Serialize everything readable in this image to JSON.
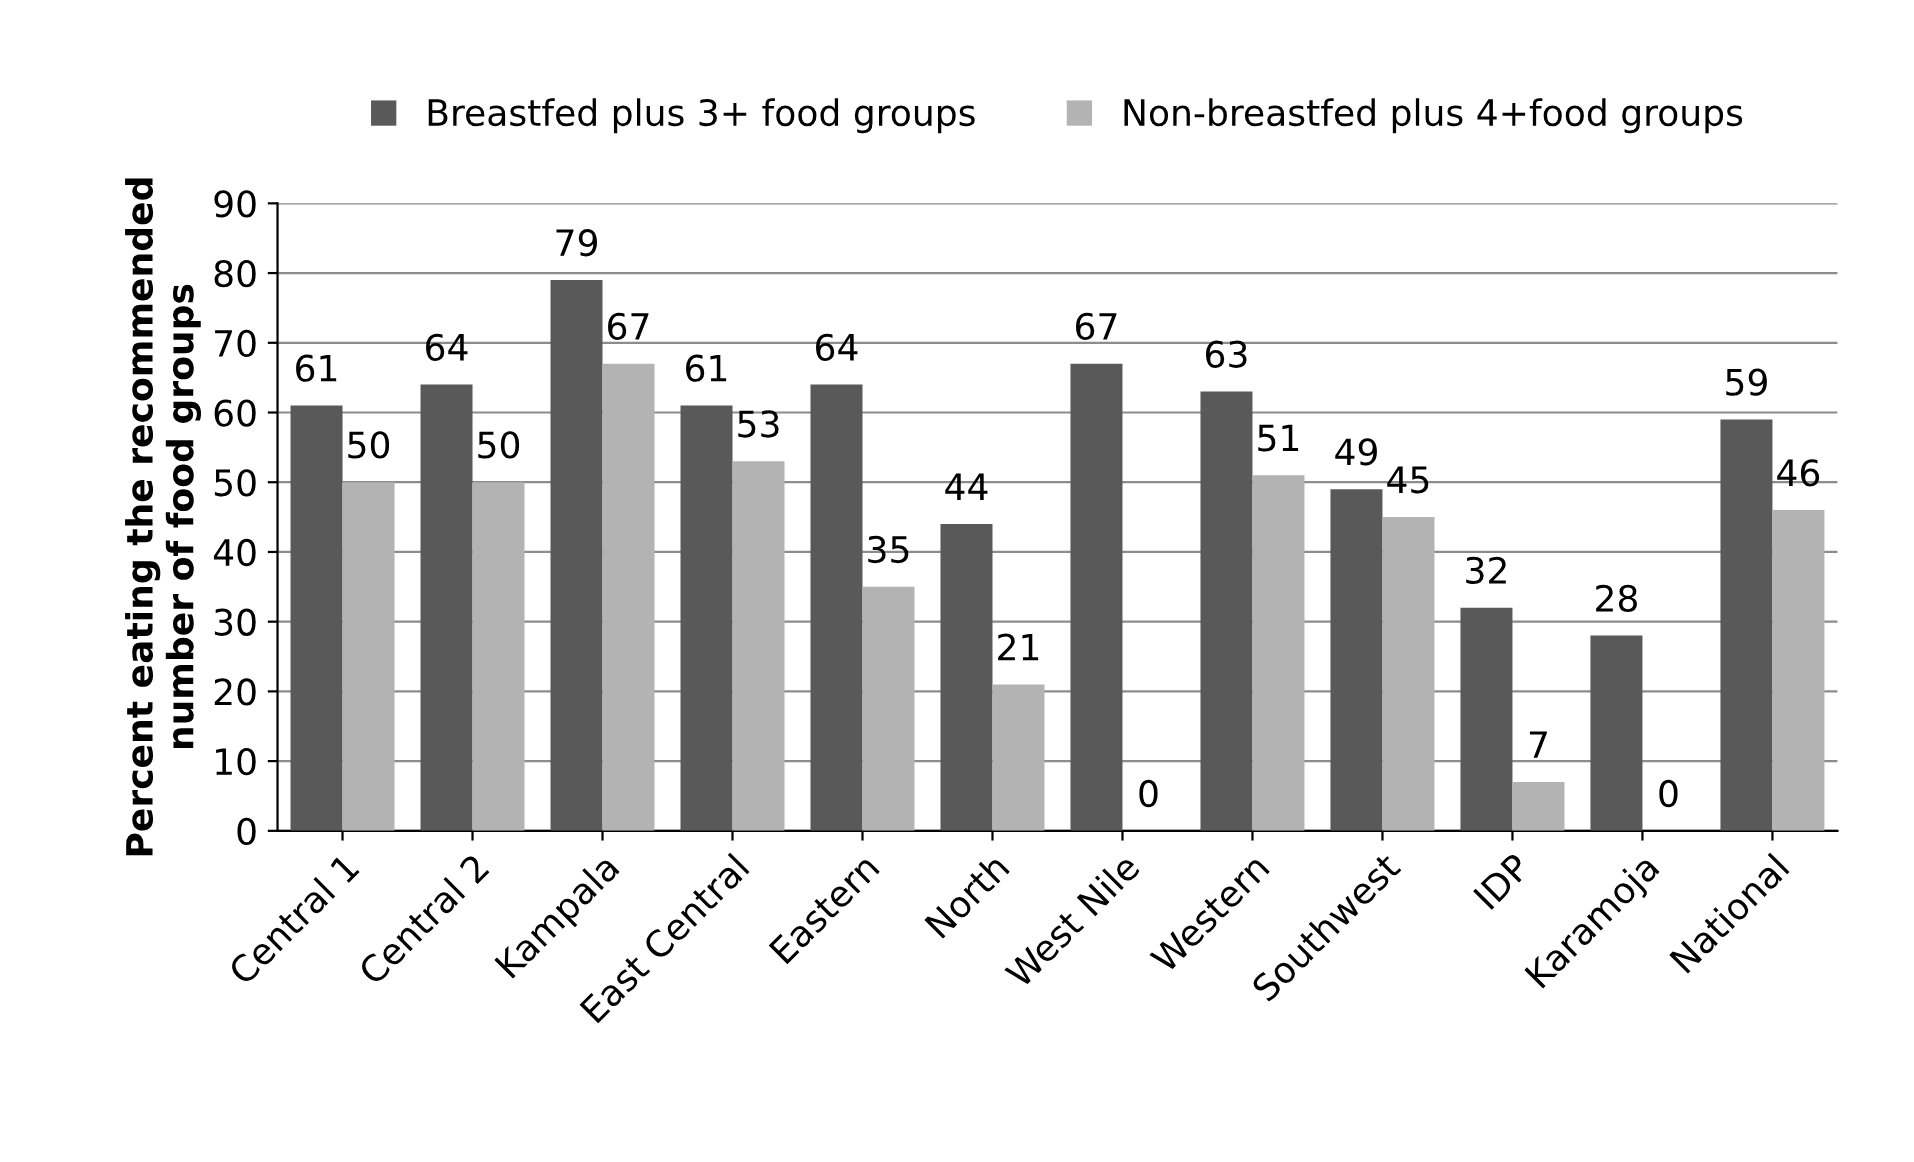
{
  "chart_data": {
    "type": "bar",
    "ylabel": "Percent eating the recommended\nnumber of food groups",
    "categories": [
      "Central 1",
      "Central 2",
      "Kampala",
      "East Central",
      "Eastern",
      "North",
      "West Nile",
      "Western",
      "Southwest",
      "IDP",
      "Karamoja",
      "National"
    ],
    "series": [
      {
        "name": "Breastfed plus 3+ food groups",
        "color": "#595959",
        "values": [
          61,
          64,
          79,
          61,
          64,
          44,
          67,
          63,
          49,
          32,
          28,
          59
        ]
      },
      {
        "name": "Non-breastfed plus 4+food groups",
        "color": "#b3b3b3",
        "values": [
          50,
          50,
          67,
          53,
          35,
          21,
          0,
          51,
          45,
          7,
          0,
          46
        ]
      }
    ],
    "ylim": [
      0,
      90
    ],
    "yticks": [
      0,
      10,
      20,
      30,
      40,
      50,
      60,
      70,
      80,
      90
    ],
    "grid": "y",
    "legend": "top",
    "data_labels": true
  }
}
